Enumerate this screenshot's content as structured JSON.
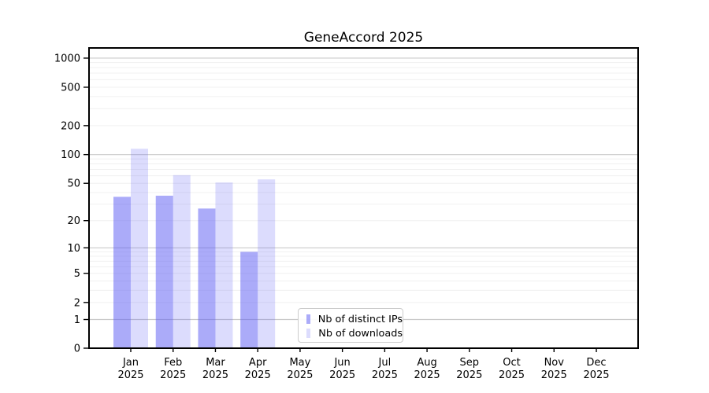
{
  "chart_data": {
    "type": "bar",
    "title": "GeneAccord 2025",
    "y_scale": "log1p",
    "categories": [
      "Jan",
      "Feb",
      "Mar",
      "Apr",
      "May",
      "Jun",
      "Jul",
      "Aug",
      "Sep",
      "Oct",
      "Nov",
      "Dec"
    ],
    "category_year": "2025",
    "series": [
      {
        "name": "Nb of distinct IPs",
        "color": "rgba(97,97,244,0.53)",
        "values": [
          36,
          37,
          27,
          9,
          null,
          null,
          null,
          null,
          null,
          null,
          null,
          null
        ]
      },
      {
        "name": "Nb of downloads",
        "color": "rgba(97,97,244,0.22)",
        "values": [
          115,
          61,
          51,
          55,
          null,
          null,
          null,
          null,
          null,
          null,
          null,
          null
        ]
      }
    ],
    "yticks": [
      0,
      1,
      2,
      5,
      10,
      20,
      50,
      100,
      200,
      500,
      1000
    ],
    "ylim": [
      0,
      1250
    ],
    "grid": {
      "major_values": [
        1,
        10,
        100,
        1000
      ],
      "major_color": "#c9c9c9",
      "minor_color": "#f0f0f0"
    },
    "spine_color": "#000000",
    "legend_position": "inside-bottom-center"
  }
}
